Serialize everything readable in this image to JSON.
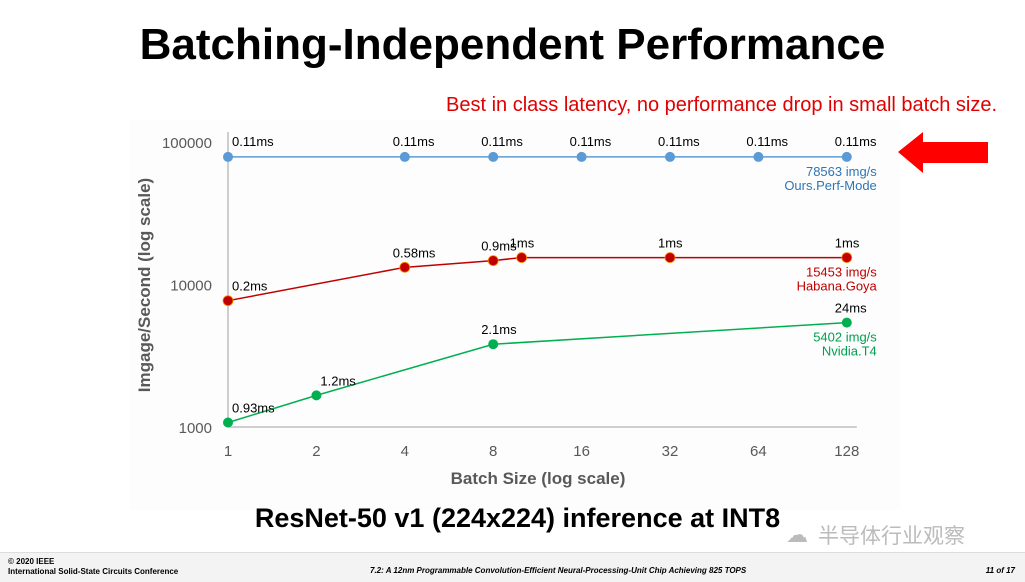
{
  "slide": {
    "title": "Batching-Independent Performance",
    "callout": "Best in class latency, no performance drop in small batch size.",
    "subtitle": "ResNet-50 v1 (224x224) inference at INT8",
    "watermark": "半导体行业观察",
    "footer": {
      "copyright": "© 2020 IEEE",
      "conference": "International Solid-State Circuits Conference",
      "paper": "7.2: A 12nm Programmable Convolution-Efficient Neural-Processing-Unit Chip Achieving 825 TOPS",
      "page": "11 of 17"
    },
    "arrow_color": "#ff0000"
  },
  "chart_data": {
    "type": "line",
    "title": "",
    "xlabel": "Batch Size    (log scale)",
    "ylabel": "Imgage/Second    (log scale)",
    "x_scale": "log2",
    "y_scale": "log10",
    "xticks": [
      1,
      2,
      4,
      8,
      16,
      32,
      64,
      128
    ],
    "xtick_labels": [
      "1",
      "2",
      "4",
      "8",
      "16",
      "32",
      "64",
      "128"
    ],
    "yticks": [
      1000,
      10000,
      100000
    ],
    "ytick_labels": [
      "1000",
      "10000",
      "100000"
    ],
    "ylim": [
      1000,
      100000
    ],
    "xlim": [
      1,
      128
    ],
    "grid": false,
    "series": [
      {
        "name": "Ours.Perf-Mode",
        "end_label": "78563 img/s",
        "color": "#5b9bd5",
        "label_color": "#2e75b6",
        "x": [
          1,
          4,
          8,
          16,
          32,
          64,
          128
        ],
        "y": [
          78563,
          78563,
          78563,
          78563,
          78563,
          78563,
          78563
        ],
        "point_labels": [
          "0.11ms",
          "0.11ms",
          "0.11ms",
          "0.11ms",
          "0.11ms",
          "0.11ms",
          "0.11ms"
        ]
      },
      {
        "name": "Habana.Goya",
        "end_label": "15453 img/s",
        "color": "#c00000",
        "label_color": "#c00000",
        "x": [
          1,
          4,
          8,
          10,
          32,
          128
        ],
        "y": [
          7700,
          13200,
          14700,
          15453,
          15453,
          15453
        ],
        "point_labels": [
          "0.2ms",
          "0.58ms",
          "0.9ms",
          "1ms",
          "1ms",
          "1ms"
        ]
      },
      {
        "name": "Nvidia.T4",
        "end_label": "5402 img/s",
        "color": "#00b050",
        "label_color": "#00a050",
        "x": [
          1,
          2,
          8,
          128
        ],
        "y": [
          1075,
          1667,
          3810,
          5402
        ],
        "point_labels": [
          "0.93ms",
          "1.2ms",
          "2.1ms",
          "24ms"
        ]
      }
    ]
  }
}
